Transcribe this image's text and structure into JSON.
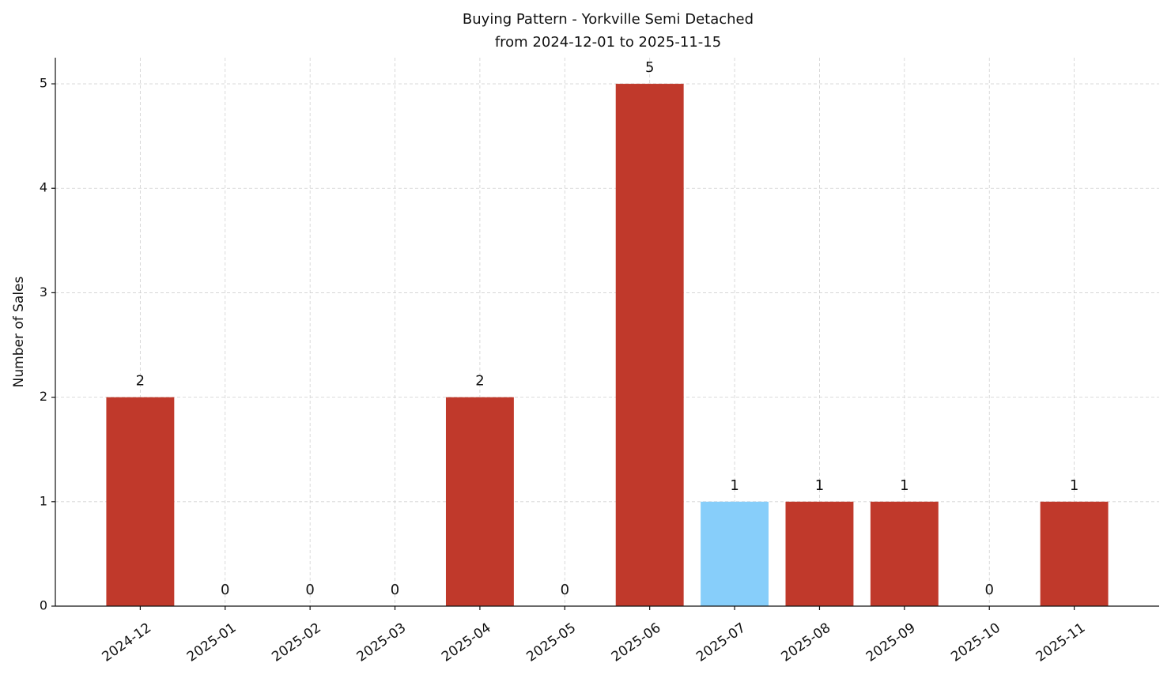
{
  "chart_data": {
    "type": "bar",
    "title": "Buying Pattern - Yorkville Semi Detached",
    "subtitle": "from 2024-12-01 to 2025-11-15",
    "y_label": "Number of Sales",
    "categories": [
      "2024-12",
      "2025-01",
      "2025-02",
      "2025-03",
      "2025-04",
      "2025-05",
      "2025-06",
      "2025-07",
      "2025-08",
      "2025-09",
      "2025-10",
      "2025-11"
    ],
    "values": [
      2,
      0,
      0,
      0,
      2,
      0,
      5,
      1,
      1,
      1,
      0,
      1
    ],
    "colors": [
      "#c0392b",
      "#c0392b",
      "#c0392b",
      "#c0392b",
      "#c0392b",
      "#c0392b",
      "#c0392b",
      "#87cefa",
      "#c0392b",
      "#c0392b",
      "#c0392b",
      "#c0392b"
    ],
    "ylim": [
      0,
      5.25
    ],
    "yticks": [
      0,
      1,
      2,
      3,
      4,
      5
    ],
    "grid": true
  }
}
